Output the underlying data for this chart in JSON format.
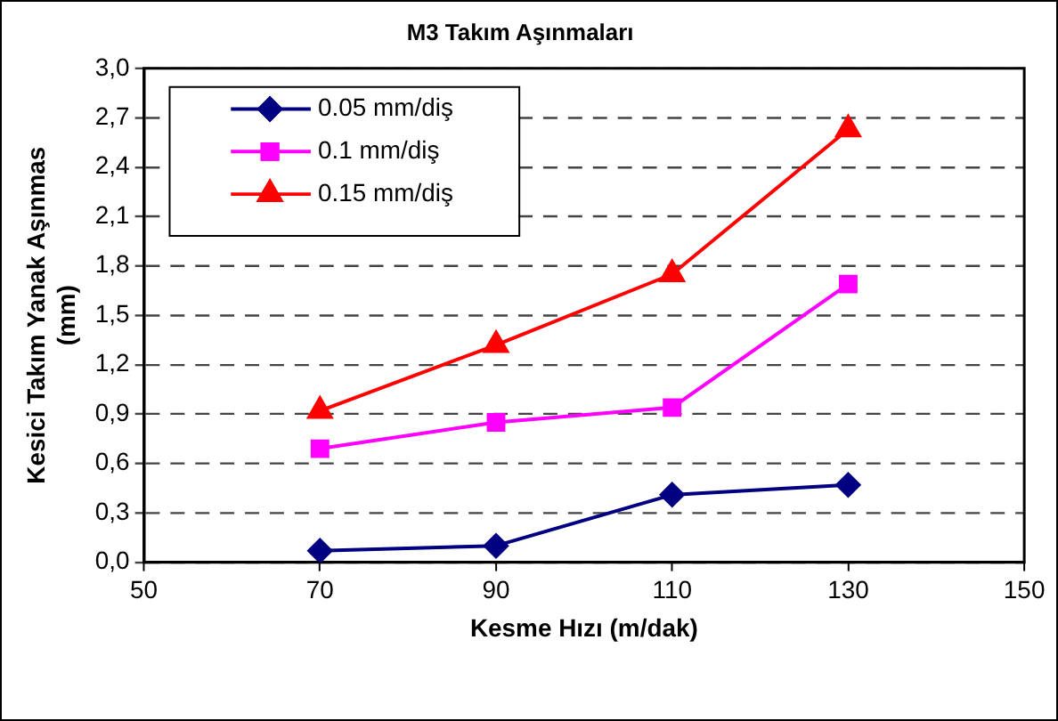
{
  "chart_data": {
    "type": "line",
    "title": "M3 Takım Aşınmaları",
    "xlabel": "Kesme Hızı (m/dak)",
    "ylabel": "Kesici Takım Yanak Aşınmas\n(mm)",
    "x": [
      70,
      90,
      110,
      130
    ],
    "xlim": [
      50,
      150
    ],
    "xticks": [
      50,
      70,
      90,
      110,
      130,
      150
    ],
    "ylim": [
      0,
      3
    ],
    "yticks": [
      {
        "value": 0,
        "label": "0,0"
      },
      {
        "value": 0.3,
        "label": "0,3"
      },
      {
        "value": 0.6,
        "label": "0,6"
      },
      {
        "value": 0.9,
        "label": "0,9"
      },
      {
        "value": 1.2,
        "label": "1,2"
      },
      {
        "value": 1.5,
        "label": "1,5"
      },
      {
        "value": 1.8,
        "label": "1,8"
      },
      {
        "value": 2.1,
        "label": "2,1"
      },
      {
        "value": 2.4,
        "label": "2,4"
      },
      {
        "value": 2.7,
        "label": "2,7"
      },
      {
        "value": 3,
        "label": "3,0"
      }
    ],
    "grid": "y",
    "legend": "top left",
    "line_style": "solid",
    "series": [
      {
        "name": "0.05 mm/diş",
        "color": "#000080",
        "marker": "diamond",
        "values": [
          0.07,
          0.1,
          0.41,
          0.47
        ]
      },
      {
        "name": "0.1 mm/diş",
        "color": "#ff00ff",
        "marker": "square",
        "values": [
          0.69,
          0.85,
          0.94,
          1.69
        ]
      },
      {
        "name": "0.15 mm/diş",
        "color": "#ff0000",
        "marker": "triangle",
        "values": [
          0.92,
          1.32,
          1.75,
          2.63
        ]
      }
    ]
  }
}
